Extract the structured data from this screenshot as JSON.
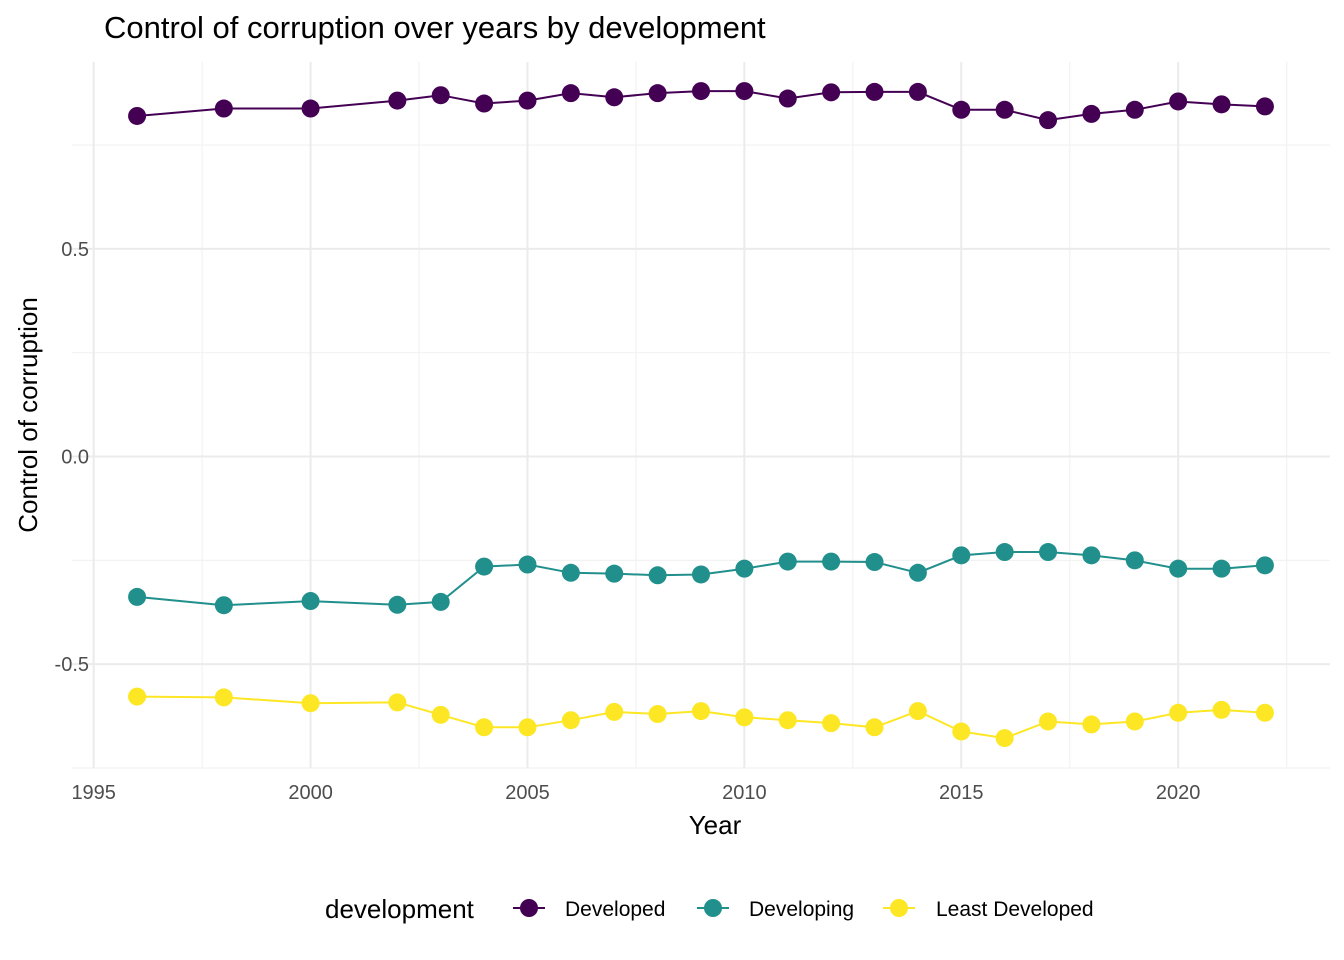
{
  "chart_data": {
    "type": "line",
    "title": "Control of corruption over years by development",
    "xlabel": "Year",
    "ylabel": "Control of corruption",
    "xlim": [
      1994.5,
      2023.5
    ],
    "ylim": [
      -0.75,
      0.95
    ],
    "x_ticks": [
      1995,
      2000,
      2005,
      2010,
      2015,
      2020
    ],
    "x_tick_labels": [
      "1995",
      "2000",
      "2005",
      "2010",
      "2015",
      "2020"
    ],
    "y_ticks": [
      -0.5,
      0.0,
      0.5
    ],
    "y_tick_labels": [
      "-0.5",
      "0.0",
      "0.5"
    ],
    "grid": true,
    "legend_title": "development",
    "legend_position": "bottom",
    "x": [
      1996,
      1998,
      2000,
      2002,
      2003,
      2004,
      2005,
      2006,
      2007,
      2008,
      2009,
      2010,
      2011,
      2012,
      2013,
      2014,
      2015,
      2016,
      2017,
      2018,
      2019,
      2020,
      2021,
      2022
    ],
    "series": [
      {
        "name": "Developed",
        "color": "#440154",
        "values": [
          0.82,
          0.838,
          0.838,
          0.857,
          0.87,
          0.85,
          0.857,
          0.875,
          0.865,
          0.875,
          0.88,
          0.88,
          0.862,
          0.877,
          0.878,
          0.878,
          0.835,
          0.835,
          0.81,
          0.825,
          0.835,
          0.855,
          0.848,
          0.843
        ]
      },
      {
        "name": "Developing",
        "color": "#21908C",
        "values": [
          -0.338,
          -0.358,
          -0.348,
          -0.357,
          -0.35,
          -0.265,
          -0.26,
          -0.28,
          -0.282,
          -0.286,
          -0.284,
          -0.27,
          -0.253,
          -0.253,
          -0.254,
          -0.28,
          -0.238,
          -0.23,
          -0.23,
          -0.238,
          -0.25,
          -0.27,
          -0.27,
          -0.262
        ]
      },
      {
        "name": "Least Developed",
        "color": "#FDE725",
        "values": [
          -0.578,
          -0.58,
          -0.594,
          -0.592,
          -0.622,
          -0.652,
          -0.652,
          -0.635,
          -0.615,
          -0.62,
          -0.613,
          -0.628,
          -0.635,
          -0.642,
          -0.652,
          -0.613,
          -0.662,
          -0.678,
          -0.638,
          -0.645,
          -0.638,
          -0.617,
          -0.61,
          -0.617
        ]
      }
    ]
  }
}
